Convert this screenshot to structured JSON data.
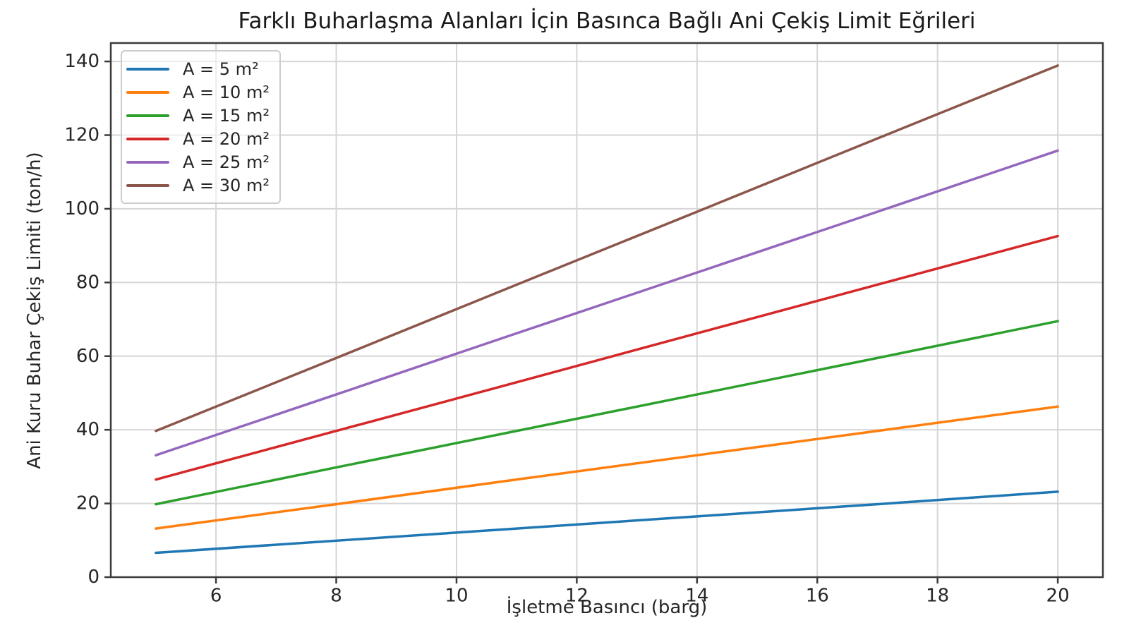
{
  "chart_data": {
    "type": "line",
    "title": "Farklı Buharlaşma Alanları İçin Basınca Bağlı Ani Çekiş Limit Eğrileri",
    "xlabel": "İşletme Basıncı (barg)",
    "ylabel": "Ani Kuru Buhar Çekiş Limiti (ton/h)",
    "x": [
      5,
      8,
      11,
      14,
      17,
      20
    ],
    "series": [
      {
        "name": "A = 5 m²",
        "color": "#1f77b4",
        "values": [
          6.6,
          9.9,
          13.2,
          16.5,
          19.8,
          23.2
        ]
      },
      {
        "name": "A = 10 m²",
        "color": "#ff7f0e",
        "values": [
          13.2,
          19.8,
          26.5,
          33.1,
          39.7,
          46.3
        ]
      },
      {
        "name": "A = 15 m²",
        "color": "#2ca02c",
        "values": [
          19.8,
          29.8,
          39.7,
          49.6,
          59.5,
          69.5
        ]
      },
      {
        "name": "A = 20 m²",
        "color": "#d62728",
        "values": [
          26.5,
          39.7,
          52.9,
          66.2,
          79.4,
          92.6
        ]
      },
      {
        "name": "A = 25 m²",
        "color": "#9467bd",
        "values": [
          33.1,
          49.6,
          66.2,
          82.7,
          99.2,
          115.8
        ]
      },
      {
        "name": "A = 30 m²",
        "color": "#8c564b",
        "values": [
          39.7,
          59.5,
          79.4,
          99.2,
          119.1,
          138.9
        ]
      }
    ],
    "xlim": [
      4.25,
      20.75
    ],
    "ylim": [
      0,
      145
    ],
    "xticks": [
      6,
      8,
      10,
      12,
      14,
      16,
      18,
      20
    ],
    "yticks": [
      0,
      20,
      40,
      60,
      80,
      100,
      120,
      140
    ],
    "grid": true,
    "legend_position": "upper left",
    "colors": {
      "grid": "#d6d6d6",
      "spine": "#3b3b3b",
      "tick_text": "#262626",
      "background": "#ffffff"
    }
  }
}
